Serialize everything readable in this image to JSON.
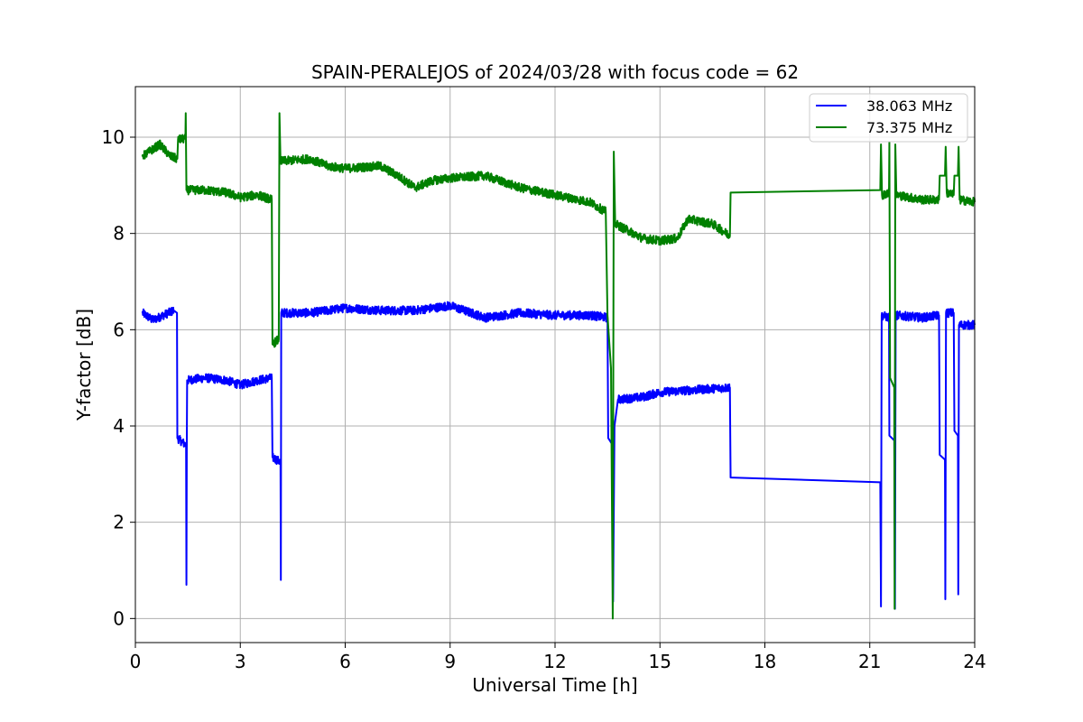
{
  "chart_data": {
    "type": "line",
    "title": "SPAIN-PERALEJOS of 2024/03/28 with focus code = 62",
    "xlabel": "Universal Time [h]",
    "ylabel": "Y-factor [dB]",
    "xlim": [
      0,
      24
    ],
    "ylim": [
      -0.5,
      11.05
    ],
    "xticks": [
      0,
      3,
      6,
      9,
      12,
      15,
      18,
      21,
      24
    ],
    "xtick_labels": [
      "0",
      "3",
      "6",
      "9",
      "12",
      "15",
      "18",
      "21",
      "24"
    ],
    "yticks": [
      0,
      2,
      4,
      6,
      8,
      10
    ],
    "ytick_labels": [
      "0",
      "2",
      "4",
      "6",
      "8",
      "10"
    ],
    "grid": true,
    "legend_position": "top-right",
    "series": [
      {
        "name": "38.063 MHz",
        "color": "#0000ff",
        "noise": 0.09,
        "points": [
          [
            0.2,
            6.35
          ],
          [
            0.5,
            6.2
          ],
          [
            0.8,
            6.3
          ],
          [
            1.1,
            6.4
          ],
          [
            1.19,
            6.35
          ],
          [
            1.2,
            3.75
          ],
          [
            1.45,
            3.6
          ],
          [
            1.46,
            0.7
          ],
          [
            1.47,
            3.5
          ],
          [
            1.48,
            4.95
          ],
          [
            2.0,
            5.0
          ],
          [
            2.6,
            4.95
          ],
          [
            3.0,
            4.85
          ],
          [
            3.5,
            4.95
          ],
          [
            3.9,
            5.0
          ],
          [
            3.92,
            3.35
          ],
          [
            4.15,
            3.25
          ],
          [
            4.16,
            0.8
          ],
          [
            4.17,
            6.35
          ],
          [
            5.0,
            6.35
          ],
          [
            6.0,
            6.45
          ],
          [
            7.0,
            6.4
          ],
          [
            8.0,
            6.4
          ],
          [
            9.0,
            6.5
          ],
          [
            10.0,
            6.25
          ],
          [
            11.0,
            6.35
          ],
          [
            12.0,
            6.3
          ],
          [
            13.0,
            6.3
          ],
          [
            13.5,
            6.25
          ],
          [
            13.52,
            3.75
          ],
          [
            13.65,
            3.6
          ],
          [
            13.66,
            0.35
          ],
          [
            13.7,
            4.0
          ],
          [
            13.8,
            4.55
          ],
          [
            14.5,
            4.6
          ],
          [
            15.0,
            4.7
          ],
          [
            16.0,
            4.75
          ],
          [
            17.0,
            4.8
          ],
          [
            17.02,
            2.93
          ],
          [
            21.3,
            2.83
          ],
          [
            21.32,
            0.25
          ],
          [
            21.34,
            6.3
          ],
          [
            21.55,
            6.25
          ],
          [
            21.56,
            3.8
          ],
          [
            21.7,
            3.7
          ],
          [
            21.72,
            0.2
          ],
          [
            21.74,
            6.3
          ],
          [
            22.5,
            6.25
          ],
          [
            22.98,
            6.3
          ],
          [
            23.0,
            3.4
          ],
          [
            23.15,
            3.3
          ],
          [
            23.16,
            0.4
          ],
          [
            23.18,
            6.35
          ],
          [
            23.4,
            6.35
          ],
          [
            23.42,
            3.9
          ],
          [
            23.52,
            3.8
          ],
          [
            23.53,
            0.5
          ],
          [
            23.55,
            6.1
          ],
          [
            24.0,
            6.1
          ]
        ]
      },
      {
        "name": "73.375 MHz",
        "color": "#008000",
        "noise": 0.09,
        "points": [
          [
            0.2,
            9.6
          ],
          [
            0.4,
            9.7
          ],
          [
            0.7,
            9.85
          ],
          [
            1.0,
            9.6
          ],
          [
            1.2,
            9.55
          ],
          [
            1.22,
            9.95
          ],
          [
            1.43,
            9.97
          ],
          [
            1.44,
            10.5
          ],
          [
            1.46,
            8.9
          ],
          [
            2.0,
            8.9
          ],
          [
            2.6,
            8.85
          ],
          [
            3.0,
            8.75
          ],
          [
            3.5,
            8.8
          ],
          [
            3.9,
            8.7
          ],
          [
            3.92,
            5.7
          ],
          [
            4.1,
            5.8
          ],
          [
            4.12,
            10.5
          ],
          [
            4.15,
            9.5
          ],
          [
            5.0,
            9.55
          ],
          [
            5.5,
            9.4
          ],
          [
            6.0,
            9.35
          ],
          [
            7.0,
            9.4
          ],
          [
            7.5,
            9.2
          ],
          [
            8.0,
            8.95
          ],
          [
            8.5,
            9.1
          ],
          [
            9.0,
            9.15
          ],
          [
            10.0,
            9.2
          ],
          [
            11.0,
            8.95
          ],
          [
            12.0,
            8.8
          ],
          [
            13.0,
            8.65
          ],
          [
            13.45,
            8.45
          ],
          [
            13.5,
            6.3
          ],
          [
            13.6,
            5.2
          ],
          [
            13.65,
            0.0
          ],
          [
            13.68,
            9.7
          ],
          [
            13.72,
            8.2
          ],
          [
            14.5,
            7.9
          ],
          [
            15.0,
            7.85
          ],
          [
            15.5,
            7.9
          ],
          [
            15.8,
            8.3
          ],
          [
            16.5,
            8.2
          ],
          [
            17.0,
            7.95
          ],
          [
            17.02,
            8.85
          ],
          [
            21.3,
            8.9
          ],
          [
            21.32,
            9.85
          ],
          [
            21.35,
            8.8
          ],
          [
            21.55,
            8.85
          ],
          [
            21.56,
            9.9
          ],
          [
            21.58,
            5.0
          ],
          [
            21.7,
            4.8
          ],
          [
            21.71,
            0.2
          ],
          [
            21.73,
            9.85
          ],
          [
            21.76,
            8.8
          ],
          [
            22.5,
            8.7
          ],
          [
            22.98,
            8.7
          ],
          [
            23.0,
            9.2
          ],
          [
            23.15,
            9.2
          ],
          [
            23.17,
            9.8
          ],
          [
            23.2,
            8.85
          ],
          [
            23.4,
            8.8
          ],
          [
            23.42,
            9.2
          ],
          [
            23.52,
            9.2
          ],
          [
            23.54,
            9.8
          ],
          [
            23.57,
            8.7
          ],
          [
            24.0,
            8.65
          ]
        ]
      }
    ]
  }
}
